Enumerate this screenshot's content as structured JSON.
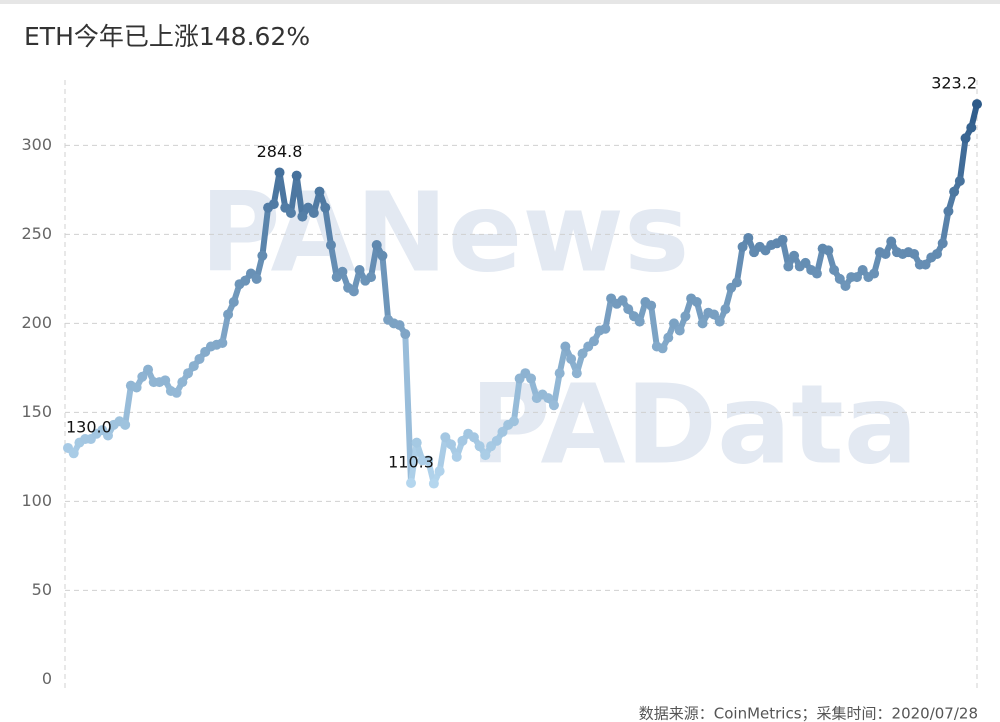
{
  "chart_data": {
    "type": "line",
    "title": "ETH今年已上涨148.62%",
    "source": "数据来源：CoinMetrics；采集时间：2020/07/28",
    "watermarks": [
      "PANews",
      "PAData"
    ],
    "values": [
      130,
      127,
      133,
      135,
      135,
      138,
      140,
      137,
      143,
      145,
      143,
      165,
      164,
      170,
      174,
      167,
      167,
      168,
      162,
      161,
      167,
      172,
      176,
      180,
      184,
      187,
      188,
      189,
      205,
      212,
      222,
      224,
      228,
      225,
      238,
      265,
      267,
      284.8,
      265,
      262,
      283,
      260,
      265,
      262,
      274,
      265,
      244,
      226,
      229,
      220,
      218,
      230,
      224,
      226,
      244,
      238,
      202,
      200,
      199,
      194,
      110.3,
      133,
      123,
      123,
      110,
      117,
      136,
      132,
      125,
      134,
      138,
      136,
      131,
      126,
      131,
      134,
      139,
      143,
      145,
      169,
      172,
      169,
      158,
      160,
      158,
      154,
      172,
      187,
      180,
      172,
      183,
      187,
      190,
      196,
      197,
      214,
      211,
      213,
      208,
      204,
      201,
      212,
      210,
      187,
      186,
      192,
      200,
      196,
      204,
      214,
      212,
      200,
      206,
      205,
      201,
      208,
      220,
      223,
      243,
      248,
      240,
      243,
      241,
      244,
      245,
      247,
      232,
      238,
      232,
      234,
      230,
      228,
      242,
      241,
      230,
      225,
      221,
      226,
      226,
      230,
      226,
      228,
      240,
      239,
      246,
      240,
      239,
      240,
      239,
      233,
      233,
      237,
      239,
      245,
      263,
      274,
      280,
      304,
      310,
      323.2
    ],
    "value_labels": [
      "130.0",
      null,
      null,
      null,
      null,
      null,
      null,
      null,
      null,
      null,
      null,
      null,
      null,
      null,
      null,
      null,
      null,
      null,
      null,
      null,
      null,
      null,
      null,
      null,
      null,
      null,
      null,
      null,
      null,
      null,
      null,
      null,
      null,
      null,
      null,
      null,
      null,
      "284.8",
      null,
      null,
      null,
      null,
      null,
      null,
      null,
      null,
      null,
      null,
      null,
      null,
      null,
      null,
      null,
      null,
      null,
      null,
      null,
      null,
      null,
      null,
      "110.3",
      null,
      null,
      null,
      null,
      null,
      null,
      null,
      null,
      null,
      null,
      null,
      null,
      null,
      null,
      null,
      null,
      null,
      null,
      null,
      null,
      null,
      null,
      null,
      null,
      null,
      null,
      null,
      null,
      null,
      null,
      null,
      null,
      null,
      null,
      null,
      null,
      null,
      null,
      null,
      null,
      null,
      null,
      null,
      null,
      null,
      null,
      null,
      null,
      null,
      null,
      null,
      null,
      null,
      null,
      null,
      null,
      null,
      null,
      null,
      null,
      null,
      null,
      null,
      null,
      null,
      null,
      null,
      null,
      null,
      null,
      null,
      null,
      null,
      null,
      null,
      null,
      null,
      null,
      null,
      null,
      null,
      null,
      null,
      null,
      null,
      null,
      null,
      null,
      null,
      null,
      null,
      null,
      null,
      null,
      null,
      null,
      null,
      null,
      "323.2"
    ],
    "color_scale": [
      "#b4d6ee",
      "#2d5a89"
    ],
    "ylim": [
      -6,
      330
    ],
    "yticks": [
      0,
      50,
      100,
      150,
      200,
      250,
      300
    ],
    "grid": true
  }
}
